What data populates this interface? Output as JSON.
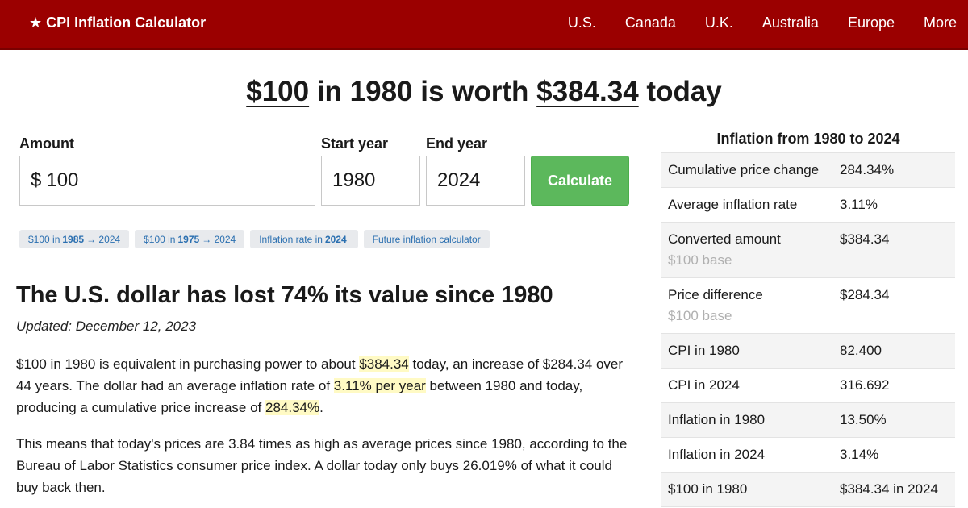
{
  "header": {
    "brand": "★ CPI Inflation Calculator",
    "nav": [
      "U.S.",
      "Canada",
      "U.K.",
      "Australia",
      "Europe",
      "More"
    ]
  },
  "headline": {
    "amount": "$100",
    "mid1": " in 1980 is worth ",
    "value": "$384.34",
    "end": " today"
  },
  "form": {
    "amount_label": "Amount",
    "currency": "$",
    "amount_value": "100",
    "start_label": "Start year",
    "start_value": "1980",
    "end_label": "End year",
    "end_value": "2024",
    "calculate_label": "Calculate"
  },
  "chips": [
    {
      "pre": "$100 in",
      "bold": "1985",
      "post": "→ 2024"
    },
    {
      "pre": "$100 in",
      "bold": "1975",
      "post": "→ 2024"
    },
    {
      "pre": "Inflation rate in",
      "bold": "2024",
      "post": ""
    },
    {
      "pre": "Future inflation calculator",
      "bold": "",
      "post": ""
    }
  ],
  "article": {
    "heading": "The U.S. dollar has lost 74% its value since 1980",
    "updated": "Updated: December 12, 2023",
    "p1": {
      "a": "$100 in 1980 is equivalent in purchasing power to about ",
      "h1": "$384.34",
      "b": " today, an increase of $284.34 over 44 years. The dollar had an average inflation rate of ",
      "h2": "3.11% per year",
      "c": " between 1980 and today, producing a cumulative price increase of ",
      "h3": "284.34%",
      "d": "."
    },
    "p2": "This means that today's prices are 3.84 times as high as average prices since 1980, according to the Bureau of Labor Statistics consumer price index. A dollar today only buys 26.019% of what it could buy back then."
  },
  "sidebar": {
    "title": "Inflation from 1980 to 2024",
    "rows": [
      {
        "label": "Cumulative price change",
        "sub": "",
        "value": "284.34%"
      },
      {
        "label": "Average inflation rate",
        "sub": "",
        "value": "3.11%"
      },
      {
        "label": "Converted amount",
        "sub": "$100 base",
        "value": "$384.34"
      },
      {
        "label": "Price difference",
        "sub": "$100 base",
        "value": "$284.34"
      },
      {
        "label": "CPI in 1980",
        "sub": "",
        "value": "82.400"
      },
      {
        "label": "CPI in 2024",
        "sub": "",
        "value": "316.692"
      },
      {
        "label": "Inflation in 1980",
        "sub": "",
        "value": "13.50%"
      },
      {
        "label": "Inflation in 2024",
        "sub": "",
        "value": "3.14%"
      },
      {
        "label": "$100 in 1980",
        "sub": "",
        "value": "$384.34 in 2024"
      }
    ]
  },
  "colors": {
    "header_bg": "#9b0000",
    "button_bg": "#5cb85c",
    "highlight": "#fffac4",
    "chip_text": "#2a6fb0"
  }
}
